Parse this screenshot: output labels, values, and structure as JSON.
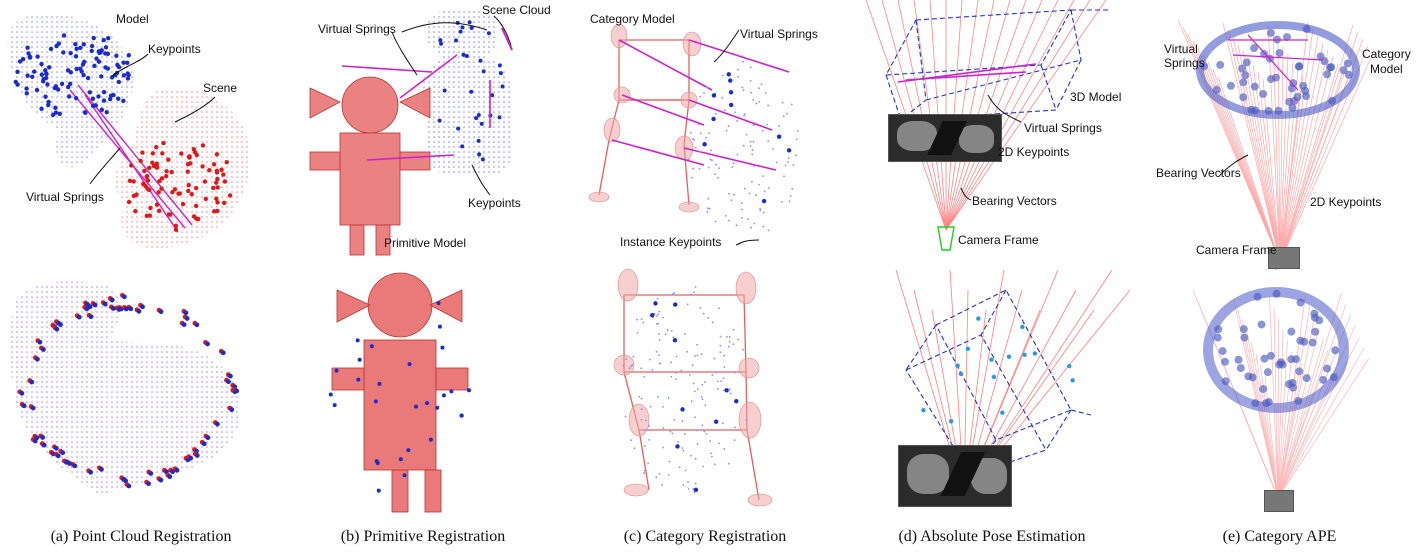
{
  "panels": [
    {
      "caption": "(a) Point Cloud Registration",
      "labels": {
        "model": "Model",
        "keypoints": "Keypoints",
        "scene": "Scene",
        "springs": "Virtual Springs"
      }
    },
    {
      "caption": "(b) Primitive Registration",
      "labels": {
        "springs": "Virtual Springs",
        "scene_cloud": "Scene Cloud",
        "keypoints": "Keypoints",
        "primitive_model": "Primitive Model"
      }
    },
    {
      "caption": "(c) Category Registration",
      "labels": {
        "category_model": "Category Model",
        "springs": "Virtual Springs",
        "instance_keypoints": "Instance Keypoints"
      }
    },
    {
      "caption": "(d) Absolute Pose Estimation",
      "labels": {
        "model_3d": "3D Model",
        "springs": "Virtual Springs",
        "keypoints_2d": "2D Keypoints",
        "bearing": "Bearing Vectors",
        "camera": "Camera Frame"
      }
    },
    {
      "caption": "(e) Category APE",
      "labels": {
        "springs_line1": "Virtual",
        "springs_line2": "Springs",
        "model_line1": "Category",
        "model_line2": "Model",
        "bearing": "Bearing Vectors",
        "keypoints_2d": "2D Keypoints",
        "camera": "Camera Frame"
      }
    }
  ],
  "colors": {
    "model_blue": "#2233cc",
    "scene_red": "#e02020",
    "spring_magenta": "#cc22cc",
    "primitive_red": "#e25a5a",
    "bearing_red": "#ff7070"
  }
}
